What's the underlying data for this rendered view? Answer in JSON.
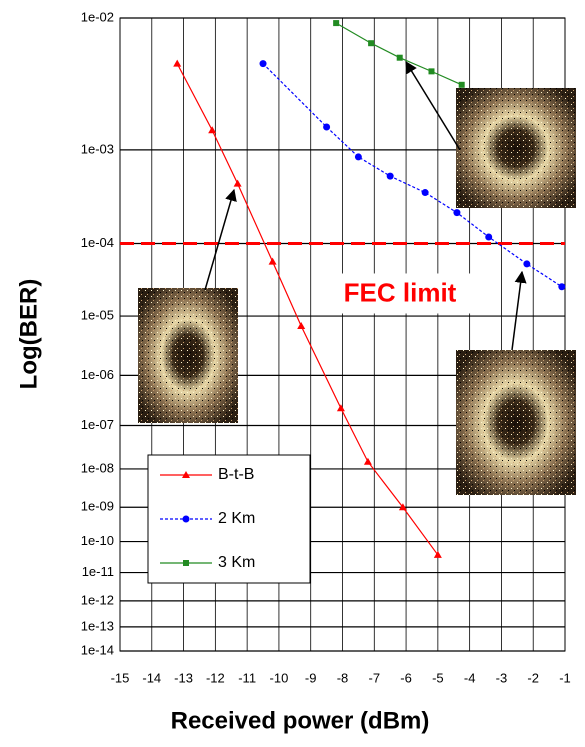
{
  "chart_data": {
    "type": "line",
    "xlabel": "Received power (dBm)",
    "ylabel": "Log(BER)",
    "xlim": [
      -15,
      -1
    ],
    "xticks": [
      -15,
      -14,
      -13,
      -12,
      -11,
      -10,
      -9,
      -8,
      -7,
      -6,
      -5,
      -4,
      -3,
      -2,
      -1
    ],
    "ylim": [
      0.01,
      1e-14
    ],
    "yscale": "log-log",
    "yticks": [
      {
        "value": 0.01,
        "label": "1e-02"
      },
      {
        "value": 0.001,
        "label": "1e-03"
      },
      {
        "value": 0.0001,
        "label": "1e-04"
      },
      {
        "value": 1e-05,
        "label": "1e-05"
      },
      {
        "value": 1e-06,
        "label": "1e-06"
      },
      {
        "value": 1e-07,
        "label": "1e-07"
      },
      {
        "value": 1e-08,
        "label": "1e-08"
      },
      {
        "value": 1e-09,
        "label": "1e-09"
      },
      {
        "value": 1e-10,
        "label": "1e-10"
      },
      {
        "value": 1e-11,
        "label": "1e-11"
      },
      {
        "value": 1e-12,
        "label": "1e-12"
      },
      {
        "value": 1e-13,
        "label": "1e-13"
      },
      {
        "value": 1e-14,
        "label": "1e-14"
      }
    ],
    "grid": true,
    "legend": "lower left",
    "series": [
      {
        "name": "B-t-B",
        "color": "#ff0000",
        "marker": "triangle",
        "dash": false,
        "x": [
          -13.2,
          -12.1,
          -11.3,
          -10.2,
          -9.3,
          -8.05,
          -7.2,
          -6.1,
          -5.0
        ],
        "values": [
          0.005,
          0.0015,
          0.00047,
          5.9e-05,
          7e-06,
          2.3e-07,
          1.5e-08,
          1e-09,
          3.8e-11
        ]
      },
      {
        "name": "2 Km",
        "color": "#0000ff",
        "marker": "circle",
        "dash": true,
        "x": [
          -10.5,
          -8.5,
          -7.5,
          -6.5,
          -5.4,
          -4.4,
          -3.4,
          -2.2,
          -1.1
        ],
        "values": [
          0.005,
          0.0016,
          0.00086,
          0.00056,
          0.00038,
          0.00023,
          0.00012,
          5.5e-05,
          2.7e-05
        ]
      },
      {
        "name": "3 Km",
        "color": "#228b22",
        "marker": "square",
        "dash": false,
        "x": [
          -8.2,
          -7.1,
          -6.2,
          -5.2,
          -4.25
        ],
        "values": [
          0.0093,
          0.0069,
          0.0055,
          0.0044,
          0.0035
        ]
      }
    ],
    "annotations": [
      {
        "text": "FEC limit",
        "value": 0.0001,
        "color": "#ff0000"
      }
    ]
  }
}
